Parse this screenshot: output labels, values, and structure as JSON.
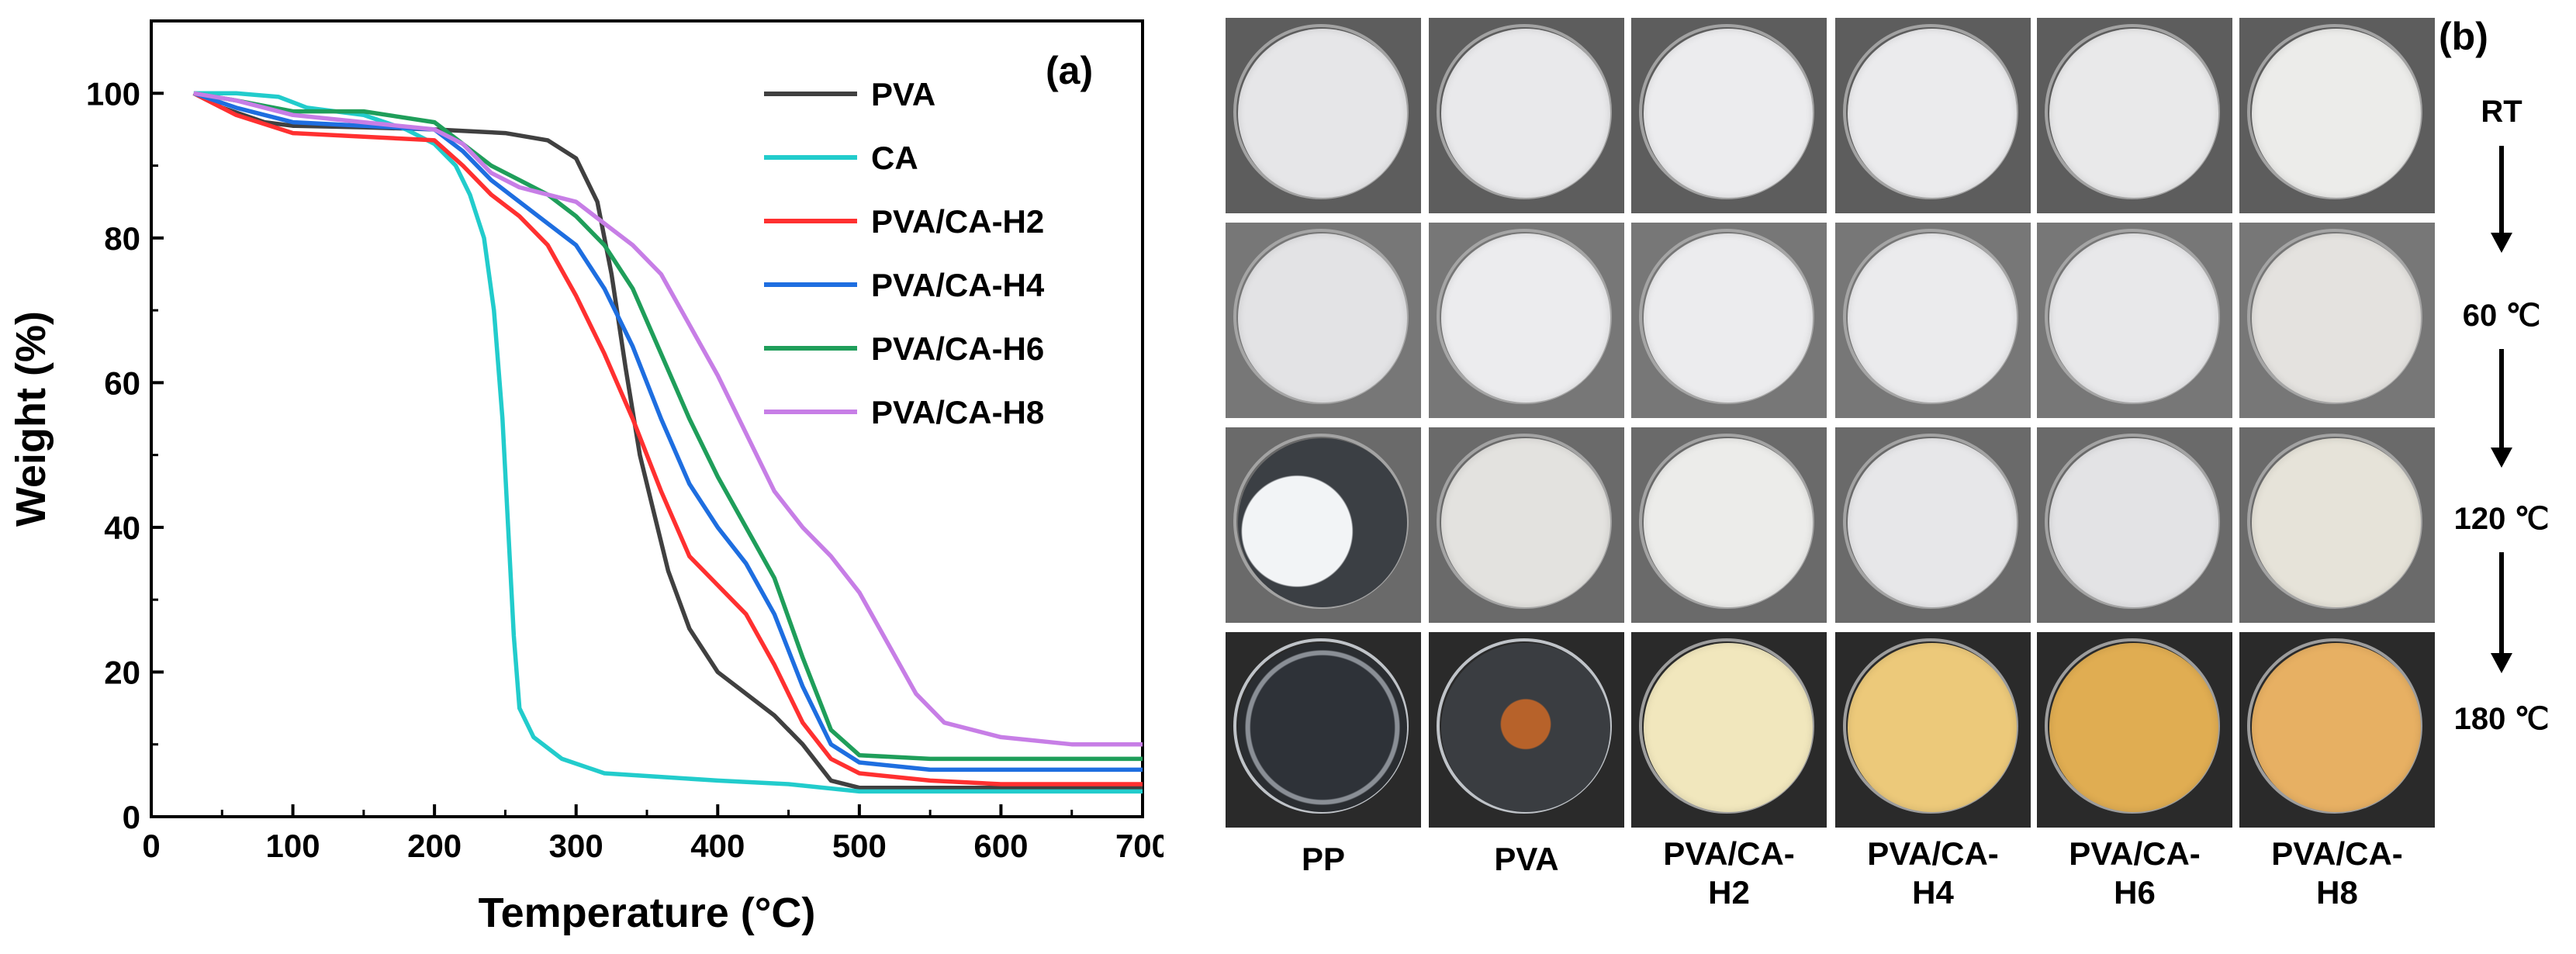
{
  "chart_data": {
    "type": "line",
    "panel_label": "(a)",
    "xlabel": "Temperature (°C)",
    "ylabel": "Weight (%)",
    "xlim": [
      0,
      700
    ],
    "ylim": [
      0,
      110
    ],
    "x_ticks": [
      0,
      100,
      200,
      300,
      400,
      500,
      600,
      700
    ],
    "y_ticks": [
      0,
      20,
      40,
      60,
      80,
      100
    ],
    "legend_position": "top-right",
    "series": [
      {
        "name": "PVA",
        "color": "#404040",
        "points": [
          [
            30,
            100
          ],
          [
            50,
            98
          ],
          [
            80,
            96
          ],
          [
            100,
            95.5
          ],
          [
            150,
            95.3
          ],
          [
            200,
            95
          ],
          [
            250,
            94.5
          ],
          [
            280,
            93.5
          ],
          [
            300,
            91
          ],
          [
            315,
            85
          ],
          [
            325,
            75
          ],
          [
            335,
            62
          ],
          [
            345,
            50
          ],
          [
            355,
            42
          ],
          [
            365,
            34
          ],
          [
            380,
            26
          ],
          [
            400,
            20
          ],
          [
            420,
            17
          ],
          [
            440,
            14
          ],
          [
            460,
            10
          ],
          [
            480,
            5
          ],
          [
            500,
            4
          ],
          [
            600,
            4
          ],
          [
            700,
            4
          ]
        ]
      },
      {
        "name": "CA",
        "color": "#22cccc",
        "points": [
          [
            30,
            100
          ],
          [
            60,
            100
          ],
          [
            90,
            99.5
          ],
          [
            110,
            98
          ],
          [
            150,
            97
          ],
          [
            180,
            95
          ],
          [
            200,
            93
          ],
          [
            215,
            90
          ],
          [
            225,
            86
          ],
          [
            235,
            80
          ],
          [
            242,
            70
          ],
          [
            248,
            55
          ],
          [
            252,
            40
          ],
          [
            256,
            25
          ],
          [
            260,
            15
          ],
          [
            270,
            11
          ],
          [
            290,
            8
          ],
          [
            320,
            6
          ],
          [
            400,
            5
          ],
          [
            450,
            4.5
          ],
          [
            500,
            3.5
          ],
          [
            600,
            3.5
          ],
          [
            700,
            3.5
          ]
        ]
      },
      {
        "name": "PVA/CA-H2",
        "color": "#ff3030",
        "points": [
          [
            30,
            100
          ],
          [
            60,
            97
          ],
          [
            100,
            94.5
          ],
          [
            150,
            94
          ],
          [
            200,
            93.5
          ],
          [
            220,
            90
          ],
          [
            240,
            86
          ],
          [
            260,
            83
          ],
          [
            280,
            79
          ],
          [
            300,
            72
          ],
          [
            320,
            64
          ],
          [
            340,
            55
          ],
          [
            360,
            45
          ],
          [
            380,
            36
          ],
          [
            400,
            32
          ],
          [
            420,
            28
          ],
          [
            440,
            21
          ],
          [
            460,
            13
          ],
          [
            480,
            8
          ],
          [
            500,
            6
          ],
          [
            550,
            5
          ],
          [
            600,
            4.5
          ],
          [
            700,
            4.5
          ]
        ]
      },
      {
        "name": "PVA/CA-H4",
        "color": "#1e6ee0",
        "points": [
          [
            30,
            100
          ],
          [
            60,
            98
          ],
          [
            100,
            96
          ],
          [
            150,
            95.5
          ],
          [
            200,
            95
          ],
          [
            220,
            92
          ],
          [
            240,
            88
          ],
          [
            260,
            85
          ],
          [
            280,
            82
          ],
          [
            300,
            79
          ],
          [
            320,
            73
          ],
          [
            340,
            65
          ],
          [
            360,
            55
          ],
          [
            380,
            46
          ],
          [
            400,
            40
          ],
          [
            420,
            35
          ],
          [
            440,
            28
          ],
          [
            460,
            18
          ],
          [
            480,
            10
          ],
          [
            500,
            7.5
          ],
          [
            550,
            6.5
          ],
          [
            600,
            6.5
          ],
          [
            700,
            6.5
          ]
        ]
      },
      {
        "name": "PVA/CA-H6",
        "color": "#1f9e5a",
        "points": [
          [
            30,
            100
          ],
          [
            60,
            99
          ],
          [
            100,
            97.5
          ],
          [
            150,
            97.5
          ],
          [
            200,
            96
          ],
          [
            220,
            93
          ],
          [
            240,
            90
          ],
          [
            260,
            88
          ],
          [
            280,
            86
          ],
          [
            300,
            83
          ],
          [
            320,
            79
          ],
          [
            340,
            73
          ],
          [
            360,
            64
          ],
          [
            380,
            55
          ],
          [
            400,
            47
          ],
          [
            420,
            40
          ],
          [
            440,
            33
          ],
          [
            460,
            22
          ],
          [
            480,
            12
          ],
          [
            500,
            8.5
          ],
          [
            550,
            8
          ],
          [
            600,
            8
          ],
          [
            700,
            8
          ]
        ]
      },
      {
        "name": "PVA/CA-H8",
        "color": "#c77ee6",
        "points": [
          [
            30,
            100
          ],
          [
            60,
            99
          ],
          [
            100,
            97
          ],
          [
            150,
            96
          ],
          [
            200,
            95
          ],
          [
            220,
            93
          ],
          [
            240,
            89
          ],
          [
            260,
            87
          ],
          [
            280,
            86
          ],
          [
            300,
            85
          ],
          [
            320,
            82
          ],
          [
            340,
            79
          ],
          [
            360,
            75
          ],
          [
            380,
            68
          ],
          [
            400,
            61
          ],
          [
            420,
            53
          ],
          [
            440,
            45
          ],
          [
            460,
            40
          ],
          [
            480,
            36
          ],
          [
            500,
            31
          ],
          [
            520,
            24
          ],
          [
            540,
            17
          ],
          [
            560,
            13
          ],
          [
            600,
            11
          ],
          [
            650,
            10
          ],
          [
            700,
            10
          ]
        ]
      }
    ]
  },
  "panel_b": {
    "panel_label": "(b)",
    "rows": [
      "RT",
      "60 ℃",
      "120 ℃",
      "180 ℃"
    ],
    "columns": [
      "PP",
      "PVA",
      "PVA/CA-H2",
      "PVA/CA-H4",
      "PVA/CA-H6",
      "PVA/CA-H8"
    ],
    "column_labels": [
      [
        "PP",
        ""
      ],
      [
        "PVA",
        ""
      ],
      [
        "PVA/CA-",
        "H2"
      ],
      [
        "PVA/CA-",
        "H4"
      ],
      [
        "PVA/CA-",
        "H6"
      ],
      [
        "PVA/CA-",
        "H8"
      ]
    ]
  }
}
